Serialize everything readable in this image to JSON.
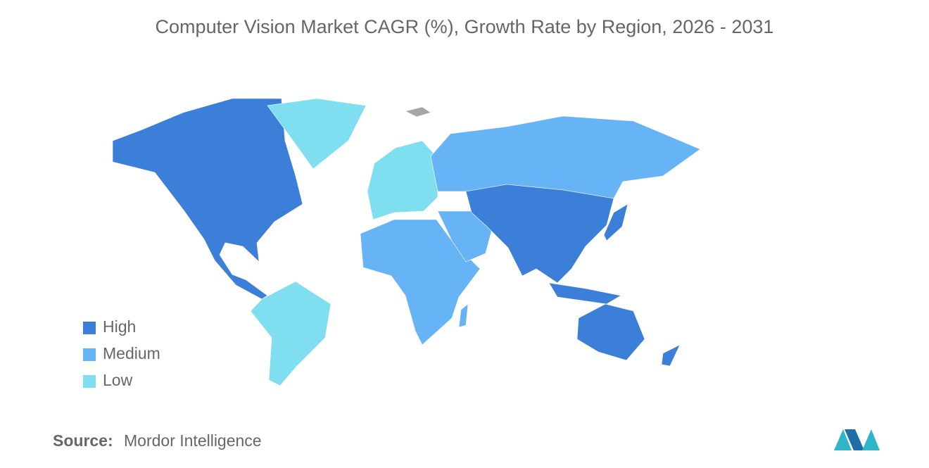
{
  "title": "Computer Vision Market CAGR (%), Growth Rate by Region, 2026 - 2031",
  "legend": [
    {
      "label": "High",
      "color": "#3b7fd9"
    },
    {
      "label": "Medium",
      "color": "#66b4f5"
    },
    {
      "label": "Low",
      "color": "#7fdff0"
    }
  ],
  "source": {
    "label": "Source:",
    "text": "Mordor Intelligence"
  }
}
